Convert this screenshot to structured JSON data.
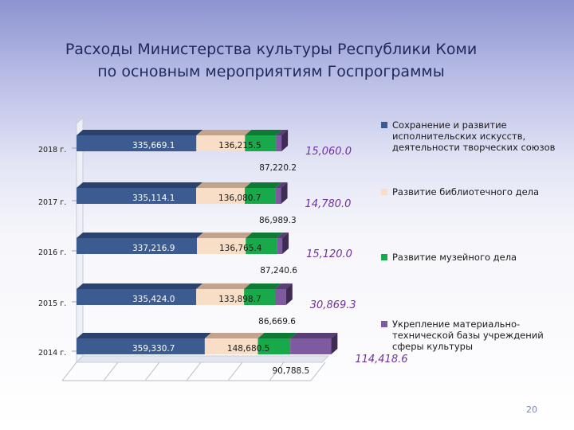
{
  "title_line1": "Расходы Министерства культуры Республики Коми",
  "title_line2": "по основным мероприятиям Госпрограммы",
  "slide_number": "20",
  "colors": {
    "s1": "#3b5b91",
    "s2": "#f8dec6",
    "s3": "#17a94a",
    "s4": "#7e5aa0",
    "highlight_label": "#7030a0"
  },
  "chart_data": {
    "type": "bar",
    "orientation": "horizontal",
    "stacked": true,
    "title": "Расходы Министерства культуры Республики Коми по основным мероприятиям Госпрограммы",
    "categories": [
      "2018 г.",
      "2017 г.",
      "2016 г.",
      "2015 г.",
      "2014 г."
    ],
    "series": [
      {
        "name": "Сохранение и развитие исполнительских искусств, деятельности творческих союзов",
        "values": [
          335669.1,
          335114.1,
          337216.9,
          335424.0,
          359330.7
        ],
        "labels": [
          "335,669.1",
          "335,114.1",
          "337,216.9",
          "335,424.0",
          "359,330.7"
        ]
      },
      {
        "name": "Развитие библиотечного дела",
        "values": [
          136215.5,
          136080.7,
          136765.4,
          133898.7,
          148680.5
        ],
        "labels": [
          "136,215.5",
          "136,080.7",
          "136,765.4",
          "133,898.7",
          "148,680.5"
        ]
      },
      {
        "name": "Развитие музейного дела",
        "values": [
          87220.2,
          86989.3,
          87240.6,
          86669.6,
          90788.5
        ],
        "labels": [
          "87,220.2",
          "86,989.3",
          "87,240.6",
          "86,669.6",
          "90,788.5"
        ]
      },
      {
        "name": "Укрепление материально-технической базы учреждений сферы культуры",
        "values": [
          15060.0,
          14780.0,
          15120.0,
          30869.3,
          114418.6
        ],
        "labels": [
          "15,060.0",
          "14,780.0",
          "15,120.0",
          "30,869.3",
          "114,418.6"
        ]
      }
    ],
    "legend_position": "right",
    "grid": true
  }
}
